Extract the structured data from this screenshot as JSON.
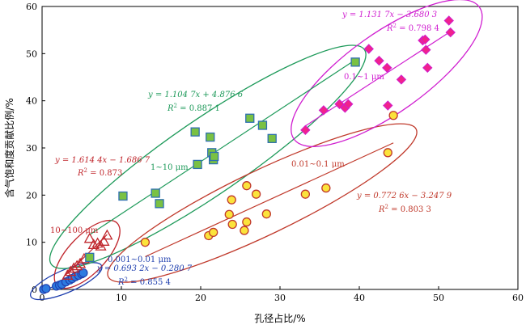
{
  "chart_data": {
    "type": "scatter",
    "xlabel": "孔径占比/%",
    "ylabel": "含气饱和度贡献比例/%",
    "xlim": [
      0,
      60
    ],
    "ylim": [
      0,
      60
    ],
    "xticks": [
      0,
      10,
      20,
      30,
      40,
      50,
      60
    ],
    "yticks": [
      0,
      10,
      20,
      30,
      40,
      50,
      60
    ],
    "grid": false,
    "colors": {
      "blue": "#1f3fae",
      "red": "#c0272d",
      "green": "#1e9a5a",
      "orange": "#c0392b",
      "magenta": "#d01fd0",
      "green_fill": "#7ac143",
      "green_edge": "#2e6fb0",
      "yellow_fill": "#fbe33b",
      "pink_fill": "#f0228c",
      "blue_fill": "#2e7be0"
    },
    "series": [
      {
        "key": "blue",
        "name": "0.001~0.01 μm",
        "marker": "circle",
        "x": [
          0.2,
          0.5,
          1.8,
          2.2,
          2.5,
          3.0,
          3.5,
          3.8,
          4.2,
          4.6,
          5.0,
          5.2
        ],
        "y": [
          0.0,
          0.2,
          0.7,
          0.9,
          1.1,
          1.6,
          2.0,
          2.3,
          2.7,
          3.0,
          3.3,
          3.5
        ],
        "equation": "y = 0.693 2x − 0.280 7",
        "r2_prefix": "R",
        "r2_sup": "2",
        "r2_value": " = 0.855 4"
      },
      {
        "key": "red",
        "name": "10~100 μm",
        "marker": "triangle",
        "x": [
          3.2,
          3.6,
          4.0,
          4.4,
          4.8,
          5.3,
          6.0,
          6.5,
          7.0,
          7.4,
          7.8,
          8.2
        ],
        "y": [
          3.0,
          3.8,
          4.5,
          5.0,
          5.5,
          6.5,
          10.8,
          9.5,
          9.8,
          9.2,
          10.2,
          11.5
        ],
        "equation": "y = 1.614 4x − 1.686 7",
        "r2_prefix": "R",
        "r2_sup": "2",
        "r2_value": " = 0.873"
      },
      {
        "key": "green",
        "name": "1~10 μm",
        "marker": "square",
        "x": [
          6.0,
          10.2,
          14.3,
          14.8,
          19.3,
          19.6,
          21.2,
          21.4,
          21.6,
          21.7,
          26.2,
          27.8,
          29.0,
          39.5
        ],
        "y": [
          6.8,
          19.8,
          20.4,
          18.2,
          33.4,
          26.5,
          32.3,
          29.0,
          27.5,
          28.2,
          36.3,
          34.8,
          32.0,
          48.2
        ],
        "equation": "y = 1.104 7x + 4.876 6",
        "r2_prefix": "R",
        "r2_sup": "2",
        "r2_value": " = 0.887 1"
      },
      {
        "key": "orange",
        "name": "0.01~0.1 μm",
        "marker": "circle",
        "x": [
          13.0,
          21.0,
          21.6,
          23.6,
          23.9,
          24.0,
          25.5,
          25.8,
          25.8,
          27.0,
          28.3,
          33.2,
          35.8,
          43.6,
          44.3
        ],
        "y": [
          10.0,
          11.4,
          12.1,
          15.9,
          19.0,
          13.8,
          12.5,
          14.3,
          22.0,
          20.2,
          16.0,
          20.2,
          21.5,
          29.0,
          36.9
        ],
        "equation": "y = 0.772 6x − 3.247 9",
        "r2_prefix": "R",
        "r2_sup": "2",
        "r2_value": " = 0.803 3"
      },
      {
        "key": "magenta",
        "name": "0.1~1 μm",
        "marker": "diamond",
        "x": [
          33.2,
          35.5,
          37.5,
          38.2,
          38.6,
          41.2,
          42.5,
          43.5,
          43.6,
          45.3,
          48.0,
          48.3,
          48.4,
          48.6,
          51.3,
          51.5
        ],
        "y": [
          33.8,
          38.0,
          39.3,
          38.5,
          39.3,
          51.0,
          48.5,
          47.0,
          39.0,
          44.5,
          52.8,
          53.0,
          50.8,
          47.0,
          57.0,
          54.5
        ],
        "equation": "y = 1.131 7x − 3.680 3",
        "r2_prefix": "R",
        "r2_sup": "2",
        "r2_value": " = 0.798 4"
      }
    ]
  }
}
